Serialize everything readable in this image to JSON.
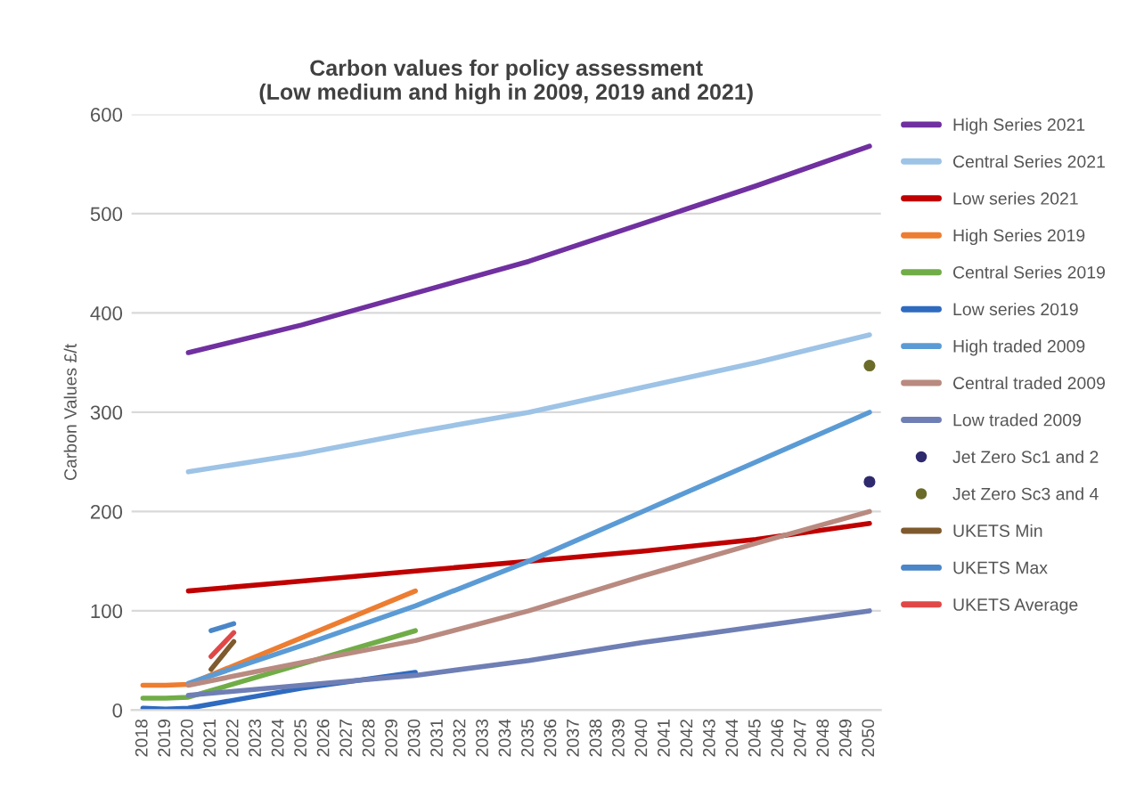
{
  "chart_data": {
    "type": "line",
    "title": "Carbon values for policy assessment\n(Low medium and high in 2009, 2019 and 2021)",
    "ylabel": "Carbon Values £/t",
    "xlim": [
      2017.5,
      2050.5
    ],
    "xticks": [
      2018,
      2019,
      2020,
      2021,
      2022,
      2023,
      2024,
      2025,
      2026,
      2027,
      2028,
      2029,
      2030,
      2031,
      2032,
      2033,
      2034,
      2035,
      2036,
      2037,
      2038,
      2039,
      2040,
      2041,
      2042,
      2043,
      2044,
      2045,
      2046,
      2047,
      2048,
      2049,
      2050
    ],
    "ylim": [
      0,
      600
    ],
    "yticks": [
      0,
      100,
      200,
      300,
      400,
      500,
      600
    ],
    "grid": "y",
    "legend": "right",
    "marker": "none",
    "line_style": "solid",
    "series": [
      {
        "name": "High Series 2021",
        "color": "#7030a0",
        "x": [
          2020,
          2025,
          2030,
          2035,
          2040,
          2045,
          2050
        ],
        "values": [
          360,
          388,
          420,
          452,
          490,
          528,
          568
        ]
      },
      {
        "name": "Central Series 2021",
        "color": "#9dc3e6",
        "x": [
          2020,
          2025,
          2030,
          2035,
          2040,
          2045,
          2050
        ],
        "values": [
          240,
          258,
          280,
          300,
          325,
          350,
          378
        ]
      },
      {
        "name": "Low series 2021",
        "color": "#c00000",
        "x": [
          2020,
          2025,
          2030,
          2035,
          2040,
          2045,
          2050
        ],
        "values": [
          120,
          130,
          140,
          150,
          160,
          172,
          188
        ]
      },
      {
        "name": "High Series 2019",
        "color": "#ed7d31",
        "x": [
          2018,
          2019,
          2020,
          2030
        ],
        "values": [
          25,
          25,
          26,
          120
        ]
      },
      {
        "name": "Central Series 2019",
        "color": "#70ad47",
        "x": [
          2018,
          2019,
          2020,
          2030
        ],
        "values": [
          12,
          12,
          13,
          80
        ]
      },
      {
        "name": "Low series 2019",
        "color": "#2e6bc0",
        "x": [
          2018,
          2019,
          2020,
          2025,
          2030
        ],
        "values": [
          2,
          1,
          2,
          22,
          38
        ]
      },
      {
        "name": "High traded 2009",
        "color": "#5b9bd5",
        "x": [
          2020,
          2025,
          2030,
          2035,
          2040,
          2045,
          2050
        ],
        "values": [
          27,
          65,
          105,
          150,
          200,
          250,
          300
        ]
      },
      {
        "name": "Central traded 2009",
        "color": "#b98a80",
        "x": [
          2020,
          2025,
          2030,
          2035,
          2040,
          2045,
          2050
        ],
        "values": [
          25,
          48,
          70,
          100,
          135,
          168,
          200
        ]
      },
      {
        "name": "Low traded 2009",
        "color": "#6f7fb5",
        "x": [
          2020,
          2025,
          2030,
          2035,
          2040,
          2045,
          2050
        ],
        "values": [
          15,
          25,
          35,
          50,
          68,
          84,
          100
        ]
      },
      {
        "name": "Jet Zero Sc1 and 2",
        "color": "#2f2a6e",
        "type": "scatter",
        "marker": "circle",
        "x": [
          2050
        ],
        "values": [
          230
        ]
      },
      {
        "name": "Jet Zero Sc3 and 4",
        "color": "#6b6b2a",
        "type": "scatter",
        "marker": "circle",
        "x": [
          2050
        ],
        "values": [
          347
        ]
      },
      {
        "name": "UKETS Min",
        "color": "#7f5a2e",
        "x": [
          2021,
          2022
        ],
        "values": [
          41,
          69
        ]
      },
      {
        "name": "UKETS Max",
        "color": "#4a86c8",
        "x": [
          2021,
          2022
        ],
        "values": [
          80,
          87
        ]
      },
      {
        "name": "UKETS Average",
        "color": "#e04848",
        "x": [
          2021,
          2022
        ],
        "values": [
          54,
          78
        ]
      }
    ]
  }
}
